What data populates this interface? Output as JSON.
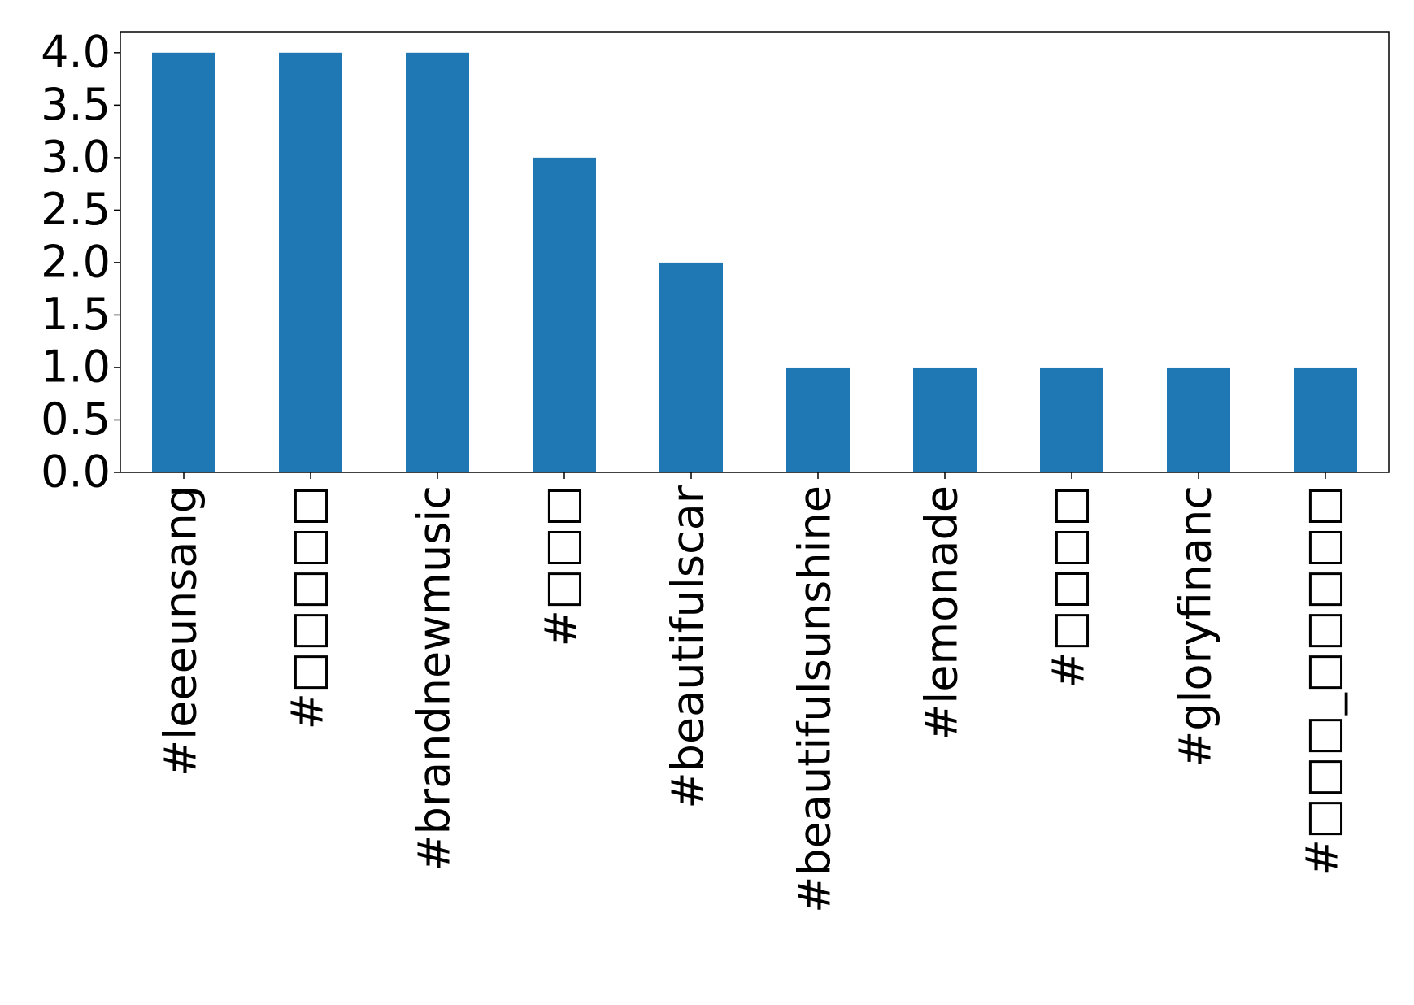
{
  "chart_data": {
    "type": "bar",
    "categories": [
      "#leeeunsang",
      "#□□□□□",
      "#brandnewmusic",
      "#□□□",
      "#beautifulscar",
      "#beautifulsunshine",
      "#lemonade",
      "#□□□□",
      "#gloryfinanc",
      "#□□□_□□□□□"
    ],
    "values": [
      4,
      4,
      4,
      3,
      2,
      1,
      1,
      1,
      1,
      1
    ],
    "color": "#1f77b4",
    "ylim": [
      0,
      4.2
    ],
    "yticks": [
      {
        "value": 0,
        "label": "0.0"
      },
      {
        "value": 0.5,
        "label": "0.5"
      },
      {
        "value": 1,
        "label": "1.0"
      },
      {
        "value": 1.5,
        "label": "1.5"
      },
      {
        "value": 2,
        "label": "2.0"
      },
      {
        "value": 2.5,
        "label": "2.5"
      },
      {
        "value": 3,
        "label": "3.0"
      },
      {
        "value": 3.5,
        "label": "3.5"
      },
      {
        "value": 4,
        "label": "4.0"
      }
    ],
    "grid": false
  }
}
